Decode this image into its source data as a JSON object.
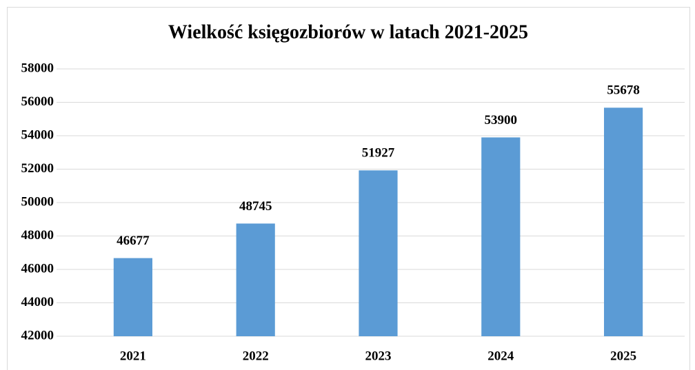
{
  "chart_data": {
    "type": "bar",
    "title": "Wielkość księgozbiorów w latach 2021-2025",
    "categories": [
      "2021",
      "2022",
      "2023",
      "2024",
      "2025"
    ],
    "values": [
      46677,
      48745,
      51927,
      53900,
      55678
    ],
    "color": "#5b9bd5",
    "ylim": [
      42000,
      58000
    ],
    "yticks": [
      42000,
      44000,
      46000,
      48000,
      50000,
      52000,
      54000,
      56000,
      58000
    ],
    "grid": true
  }
}
